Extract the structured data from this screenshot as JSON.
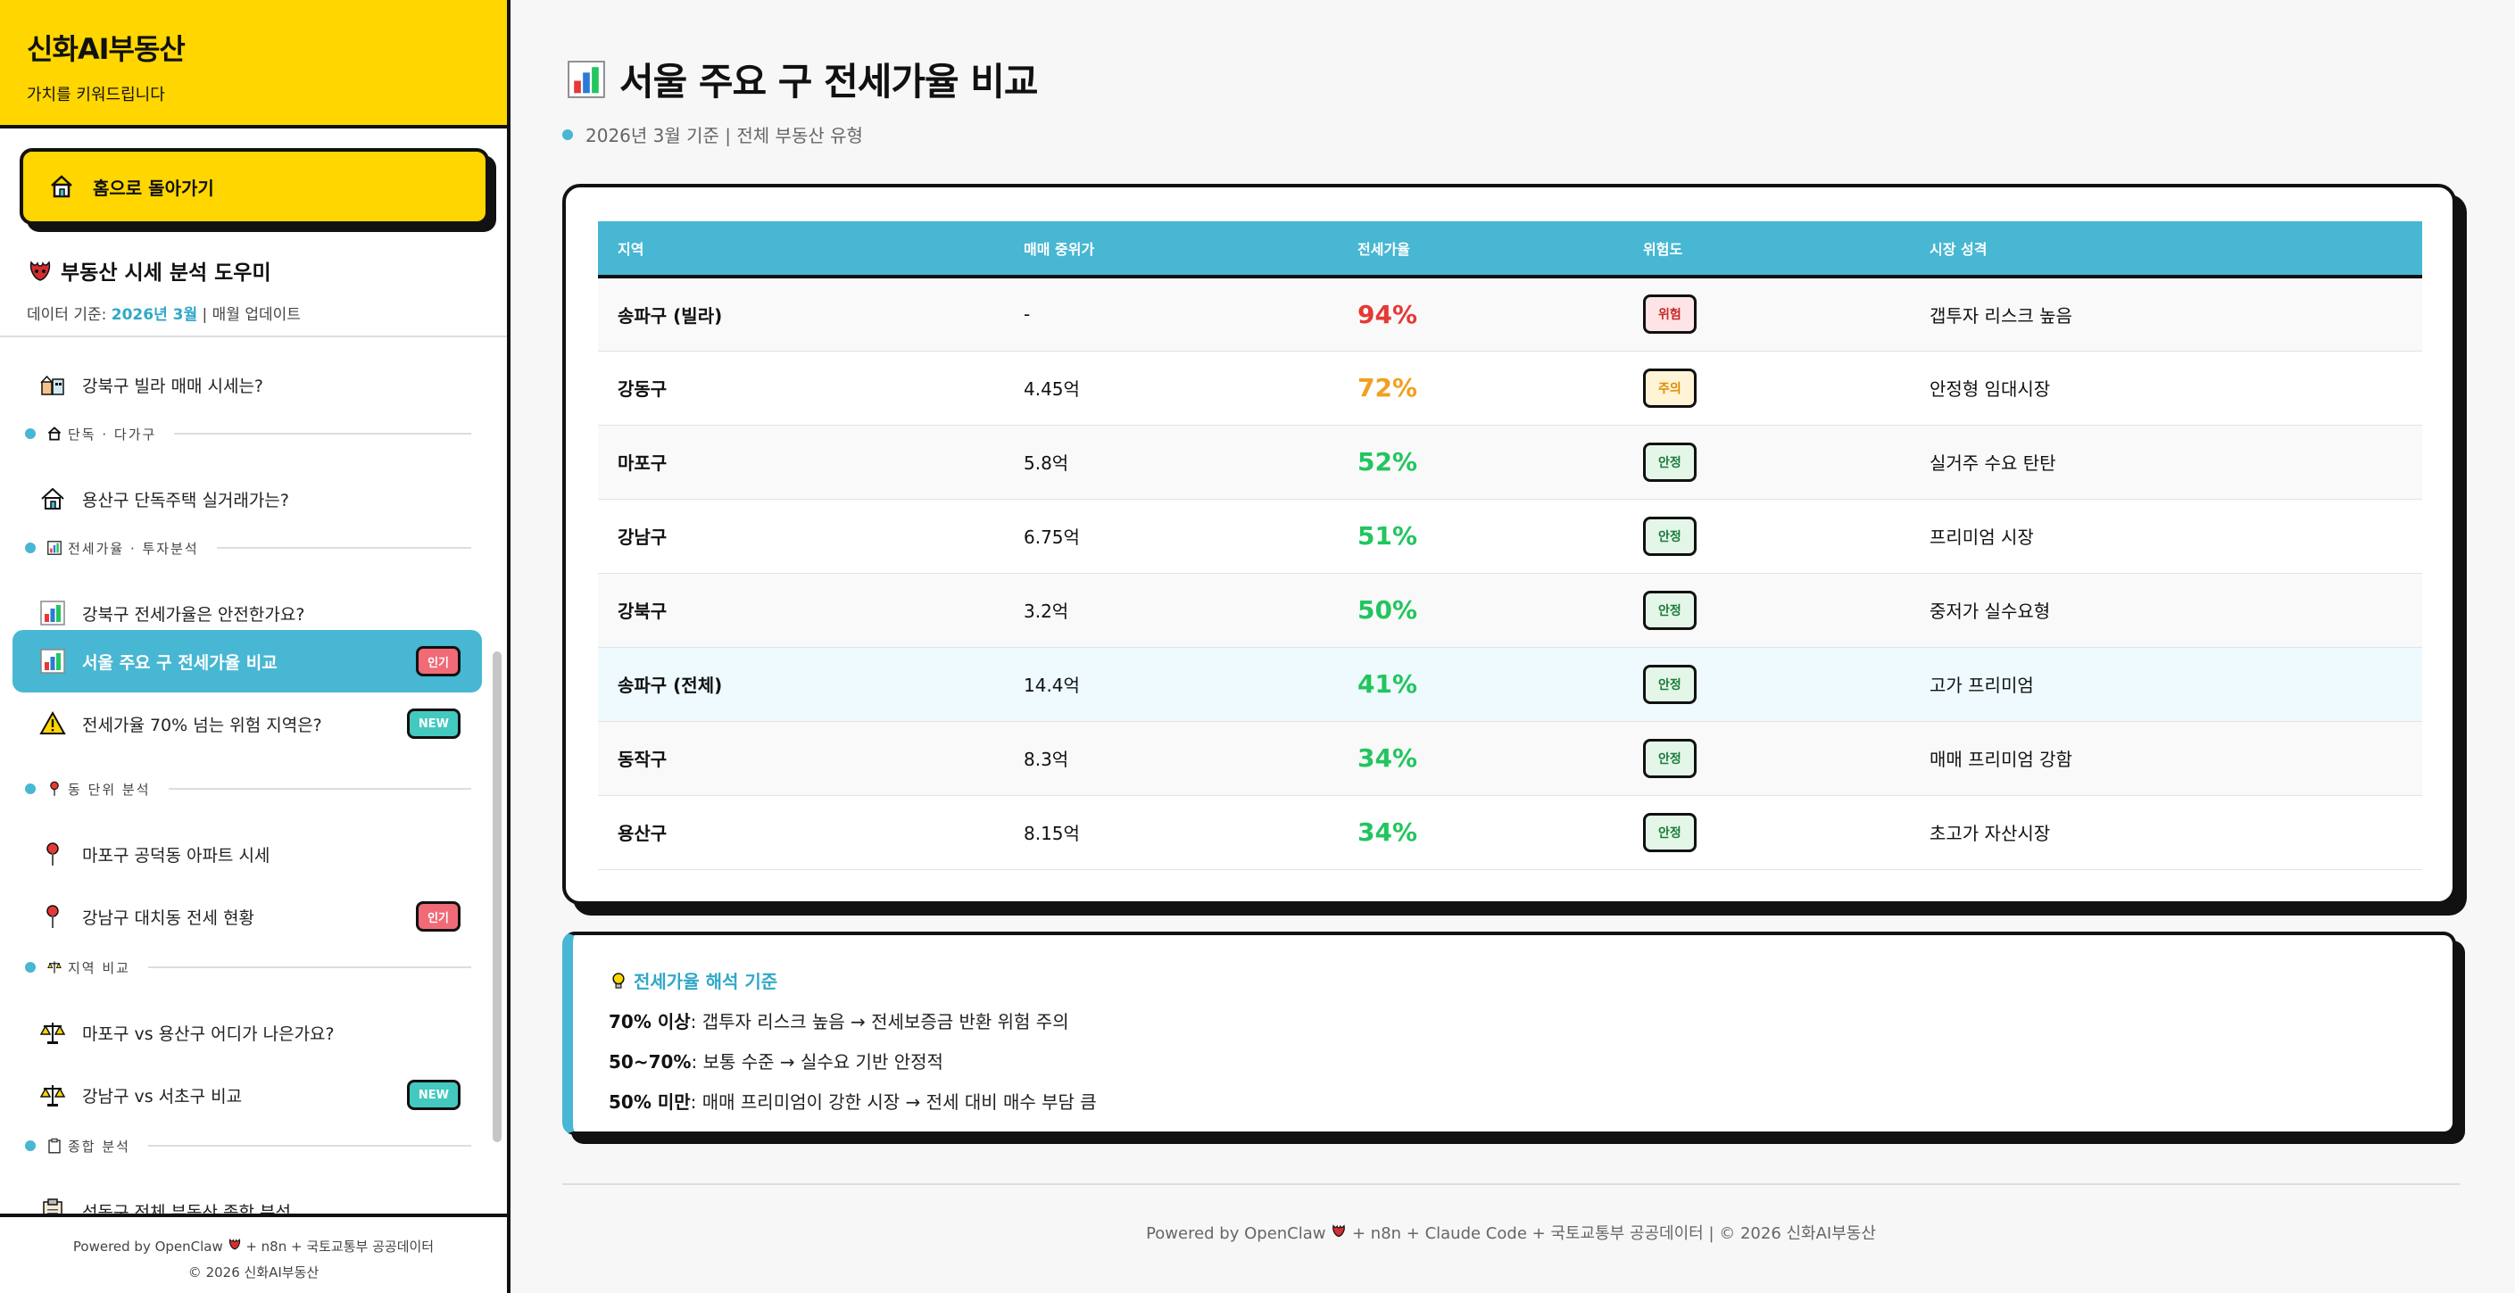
{
  "sidebar": {
    "brand_title": "신화AI부동산",
    "brand_sub": "가치를 키워드립니다",
    "home_label": "홈으로 돌아가기",
    "assistant_title": "부동산 시세 분석 도우미",
    "data_basis_prefix": "데이터 기준:",
    "data_basis_value": "2026년 3월",
    "data_basis_suffix": "| 매월 업데이트",
    "items": [
      {
        "label": "강북구 빌라 매매 시세는?",
        "icon": "house-buildings-icon"
      },
      {
        "section": "단독 · 다가구",
        "icon": "house-icon"
      },
      {
        "label": "용산구 단독주택 실거래가는?",
        "icon": "house-icon"
      },
      {
        "section": "전세가율 · 투자분석",
        "icon": "bar-chart-icon"
      },
      {
        "label": "강북구 전세가율은 안전한가요?",
        "icon": "bar-chart-icon"
      },
      {
        "label": "서울 주요 구 전세가율 비교",
        "icon": "bar-chart-icon",
        "badge": "인기"
      },
      {
        "label": "전세가율 70% 넘는 위험 지역은?",
        "icon": "warning-icon",
        "badge": "NEW"
      },
      {
        "section": "동 단위 분석",
        "icon": "pin-icon"
      },
      {
        "label": "마포구 공덕동 아파트 시세",
        "icon": "pin-icon"
      },
      {
        "label": "강남구 대치동 전세 현황",
        "icon": "pin-icon",
        "badge": "인기"
      },
      {
        "section": "지역 비교",
        "icon": "scales-icon"
      },
      {
        "label": "마포구 vs 용산구 어디가 나은가요?",
        "icon": "scales-icon"
      },
      {
        "label": "강남구 vs 서초구 비교",
        "icon": "scales-icon",
        "badge": "NEW"
      },
      {
        "section": "종합 분석",
        "icon": "clipboard-icon"
      },
      {
        "label": "성동구 전체 부동산 종합 분석",
        "icon": "clipboard-icon"
      }
    ],
    "footer_line1_a": "Powered by OpenClaw",
    "footer_line1_b": "+ n8n + 국토교통부 공공데이터",
    "footer_line2": "© 2026 신화AI부동산"
  },
  "main": {
    "title": "서울 주요 구 전세가율 비교",
    "subtitle": "2026년 3월 기준 | 전체 부동산 유형",
    "table": {
      "headers": [
        "지역",
        "매매 중위가",
        "전세가율",
        "위험도",
        "시장 성격"
      ],
      "rows": [
        {
          "region": "송파구 (빌라)",
          "price": "-",
          "ratio": "94%",
          "risk": "위험",
          "nature": "갭투자 리스크 높음"
        },
        {
          "region": "강동구",
          "price": "4.45억",
          "ratio": "72%",
          "risk": "주의",
          "nature": "안정형 임대시장"
        },
        {
          "region": "마포구",
          "price": "5.8억",
          "ratio": "52%",
          "risk": "안정",
          "nature": "실거주 수요 탄탄"
        },
        {
          "region": "강남구",
          "price": "6.75억",
          "ratio": "51%",
          "risk": "안정",
          "nature": "프리미엄 시장"
        },
        {
          "region": "강북구",
          "price": "3.2억",
          "ratio": "50%",
          "risk": "안정",
          "nature": "중저가 실수요형"
        },
        {
          "region": "송파구 (전체)",
          "price": "14.4억",
          "ratio": "41%",
          "risk": "안정",
          "nature": "고가 프리미엄"
        },
        {
          "region": "동작구",
          "price": "8.3억",
          "ratio": "34%",
          "risk": "안정",
          "nature": "매매 프리미엄 강함"
        },
        {
          "region": "용산구",
          "price": "8.15억",
          "ratio": "34%",
          "risk": "안정",
          "nature": "초고가 자산시장"
        }
      ]
    },
    "note": {
      "title": "전세가율 해석 기준",
      "lines": [
        {
          "bold": "70% 이상",
          "text": ": 갭투자 리스크 높음 → 전세보증금 반환 위험 주의"
        },
        {
          "bold": "50~70%",
          "text": ": 보통 수준 → 실수요 기반 안정적"
        },
        {
          "bold": "50% 미만",
          "text": ": 매매 프리미엄이 강한 시장 → 전세 대비 매수 부담 큼"
        }
      ]
    },
    "footer_a": "Powered by OpenClaw",
    "footer_b": "+ n8n + Claude Code + 국토교통부 공공데이터  |  © 2026 신화AI부동산"
  },
  "colors": {
    "brand_yellow": "#ffd600",
    "accent_cyan": "#47b7d3",
    "danger": "#e53935",
    "warn": "#f0a020",
    "safe": "#22c55e"
  }
}
